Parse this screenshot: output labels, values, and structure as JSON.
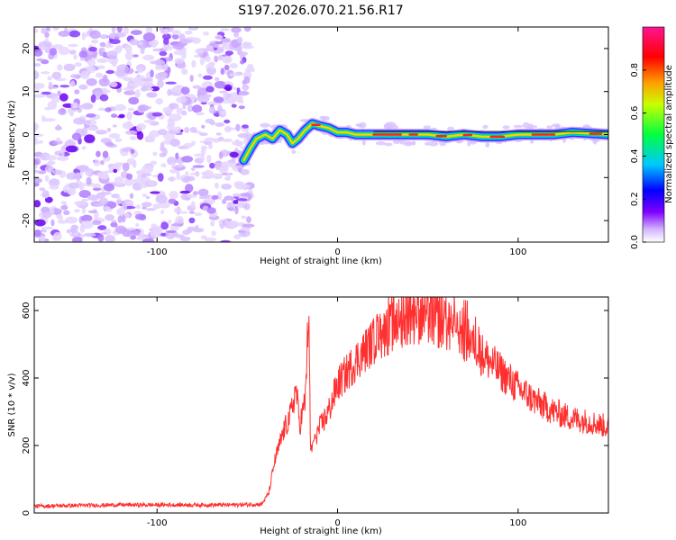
{
  "title": "S197.2026.070.21.56.R17",
  "chart_data": [
    {
      "type": "heatmap",
      "name": "spectrogram",
      "xlabel": "Height of straight line (km)",
      "ylabel": "Frequency (Hz)",
      "xlim": [
        -168,
        150
      ],
      "ylim": [
        -25,
        25
      ],
      "xticks": [
        -100,
        0,
        100
      ],
      "xtick_labels": [
        "-100",
        "0",
        "100"
      ],
      "yticks": [
        -20,
        -10,
        0,
        10,
        20
      ],
      "ytick_labels": [
        "-20",
        "-10",
        "0",
        "10",
        "20"
      ],
      "noise_region_x": [
        -168,
        -52
      ],
      "ridge": {
        "x": [
          -52,
          -48,
          -45,
          -40,
          -36,
          -32,
          -28,
          -25,
          -22,
          -18,
          -14,
          -10,
          -5,
          0,
          5,
          10,
          20,
          30,
          40,
          50,
          60,
          70,
          80,
          90,
          100,
          110,
          120,
          130,
          150
        ],
        "freq": [
          -6,
          -3,
          -1,
          0,
          -1,
          1,
          0,
          -2,
          -1,
          1,
          2.5,
          2,
          1.5,
          0.5,
          0.5,
          0,
          0,
          0,
          0,
          0,
          -0.5,
          0,
          -0.5,
          -0.5,
          0,
          0,
          0,
          0.5,
          0
        ]
      },
      "colorbar": {
        "label": "Normalized spectral amplitude",
        "range": [
          0,
          1
        ],
        "ticks": [
          0.0,
          0.2,
          0.4,
          0.6,
          0.8
        ],
        "tick_labels": [
          "0.0",
          "0.2",
          "0.4",
          "0.6",
          "0.8"
        ],
        "colors": [
          "#ffffff",
          "#c8a0ff",
          "#8000ff",
          "#0000ff",
          "#00c8ff",
          "#00ff00",
          "#ffff00",
          "#ff8000",
          "#ff0000",
          "#ff1493"
        ]
      }
    },
    {
      "type": "line",
      "name": "snr",
      "xlabel": "Height of straight line (km)",
      "ylabel": "SNR (10 * v/v)",
      "xlim": [
        -168,
        150
      ],
      "ylim": [
        0,
        640
      ],
      "xticks": [
        -100,
        0,
        100
      ],
      "xtick_labels": [
        "-100",
        "0",
        "100"
      ],
      "yticks": [
        0,
        200,
        400,
        600
      ],
      "ytick_labels": [
        "0",
        "200",
        "400",
        "600"
      ],
      "color": "#ff3030",
      "series": [
        {
          "name": "SNR",
          "x": [
            -168,
            -150,
            -120,
            -90,
            -60,
            -42,
            -38,
            -35,
            -30,
            -26,
            -23,
            -21,
            -18,
            -16,
            -15,
            -13,
            -10,
            -5,
            0,
            10,
            20,
            30,
            40,
            50,
            60,
            70,
            80,
            90,
            100,
            110,
            120,
            130,
            140,
            150
          ],
          "y": [
            20,
            22,
            24,
            24,
            24,
            26,
            60,
            150,
            240,
            290,
            370,
            260,
            330,
            600,
            180,
            220,
            250,
            300,
            380,
            450,
            510,
            550,
            580,
            575,
            555,
            520,
            470,
            420,
            370,
            330,
            300,
            280,
            270,
            255
          ]
        }
      ]
    }
  ]
}
